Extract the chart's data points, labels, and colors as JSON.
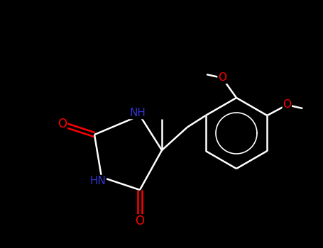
{
  "background_color": "#000000",
  "bond_color": "#ffffff",
  "atom_colors": {
    "O": "#ff0000",
    "N": "#3333cc",
    "C": "#ffffff"
  },
  "figsize": [
    4.55,
    3.5
  ],
  "dpi": 100
}
